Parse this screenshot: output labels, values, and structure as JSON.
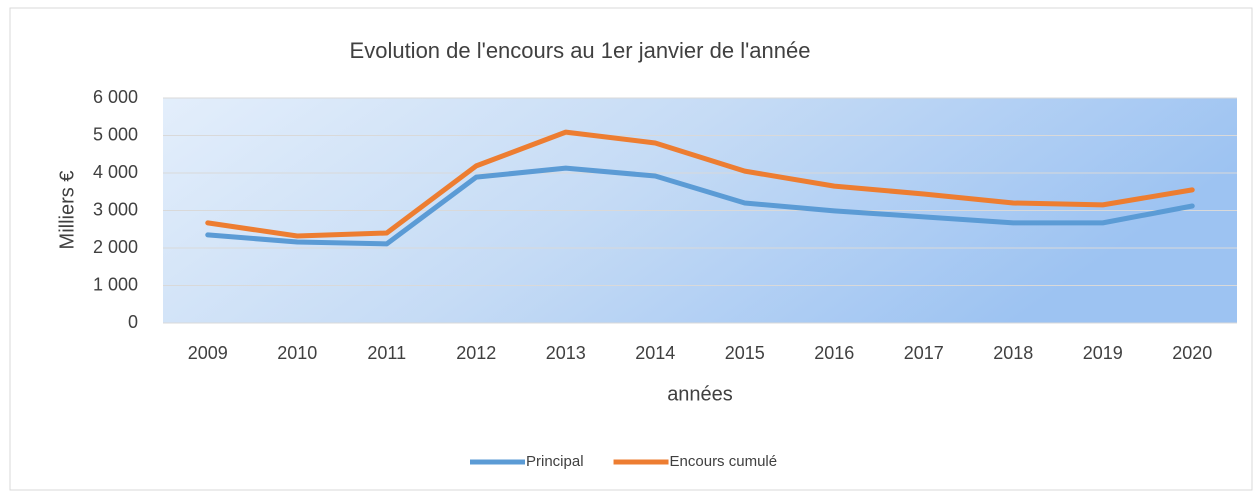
{
  "chart_data": {
    "type": "line",
    "title": "Evolution  de l'encours au 1er janvier de l'année",
    "x_label": "années",
    "y_label": "Milliers €",
    "categories": [
      "2009",
      "2010",
      "2011",
      "2012",
      "2013",
      "2014",
      "2015",
      "2016",
      "2017",
      "2018",
      "2019",
      "2020"
    ],
    "series": [
      {
        "name": "Principal",
        "color": "#5b9bd5",
        "values": [
          2350,
          2160,
          2110,
          3890,
          4130,
          3920,
          3200,
          2990,
          2830,
          2670,
          2670,
          3120
        ]
      },
      {
        "name": "Encours cumulé",
        "color": "#ed7d31",
        "values": [
          2670,
          2320,
          2400,
          4190,
          5090,
          4800,
          4050,
          3650,
          3440,
          3200,
          3150,
          3550
        ]
      }
    ],
    "ylim": [
      0,
      6000
    ],
    "yticks": [
      0,
      {
        "value": 1000,
        "label": "1 000"
      },
      {
        "value": 2000,
        "label": "2 000"
      },
      {
        "value": 3000,
        "label": "3 000"
      },
      {
        "value": 4000,
        "label": "4 000"
      },
      {
        "value": 5000,
        "label": "5 000"
      },
      {
        "value": 6000,
        "label": "6 000"
      }
    ],
    "grid": true,
    "legend": "bottom"
  }
}
